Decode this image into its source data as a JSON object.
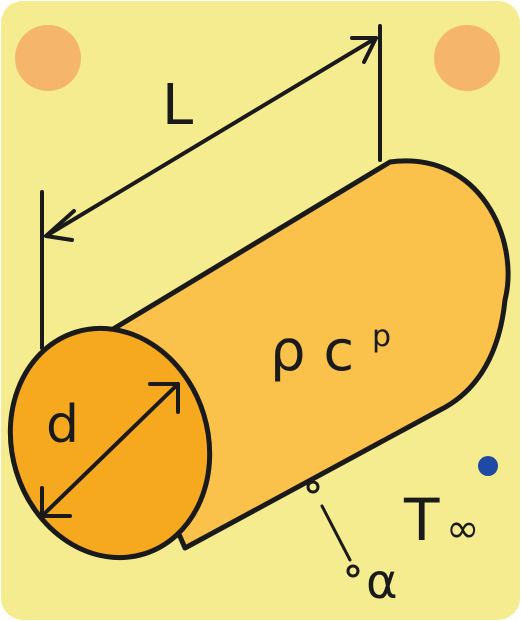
{
  "labels": {
    "length": "L",
    "diameter": "d",
    "density_heat": "ρ c",
    "density_heat_sub": "p",
    "ambient_temp": "T",
    "ambient_temp_sub": "∞",
    "diffusivity": "α"
  },
  "colors": {
    "background": "#f5ec8f",
    "cylinder_body": "#fac24a",
    "cylinder_face": "#f6a91f",
    "corner_dot": "#f5b56a",
    "blue_dot": "#2049a6",
    "ink": "#1a1a1a"
  }
}
